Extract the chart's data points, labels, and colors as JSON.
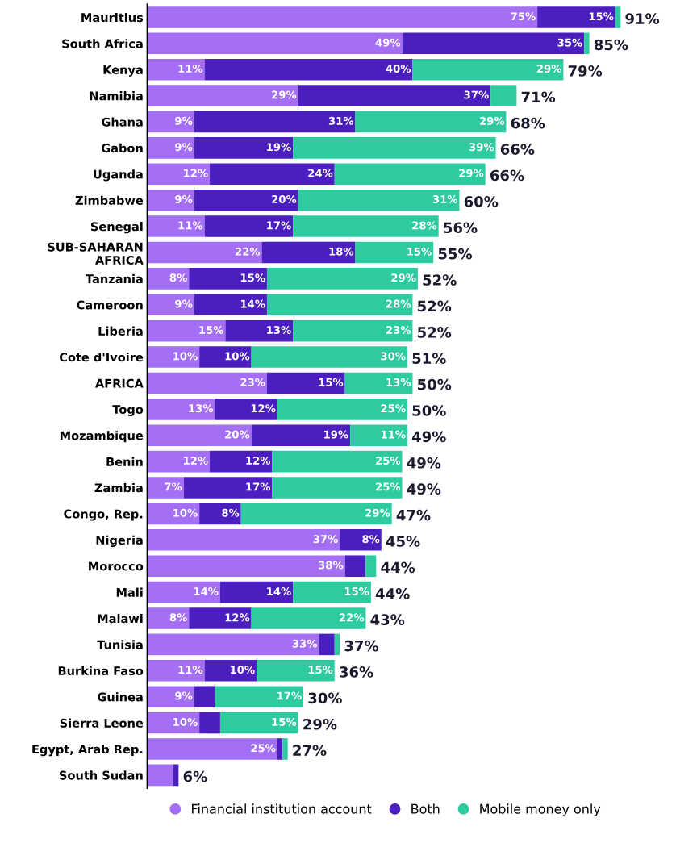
{
  "chart_data": {
    "type": "bar",
    "orientation": "horizontal",
    "stacked": true,
    "categories": [
      "Mauritius",
      "South Africa",
      "Kenya",
      "Namibia",
      "Ghana",
      "Gabon",
      "Uganda",
      "Zimbabwe",
      "Senegal",
      "SUB-SAHARAN\nAFRICA",
      "Tanzania",
      "Cameroon",
      "Liberia",
      "Cote d'Ivoire",
      "AFRICA",
      "Togo",
      "Mozambique",
      "Benin",
      "Zambia",
      "Congo, Rep.",
      "Nigeria",
      "Morocco",
      "Mali",
      "Malawi",
      "Tunisia",
      "Burkina Faso",
      "Guinea",
      "Sierra Leone",
      "Egypt, Arab Rep.",
      "South Sudan"
    ],
    "tick_labels": "y",
    "legend": "bottom",
    "grid": false,
    "series": [
      {
        "name": "Financial institution account",
        "color": "#a56ff5",
        "values": [
          75,
          49,
          11,
          29,
          9,
          9,
          12,
          9,
          11,
          22,
          8,
          9,
          15,
          10,
          23,
          13,
          20,
          12,
          7,
          10,
          37,
          38,
          14,
          8,
          33,
          11,
          9,
          10,
          25,
          5
        ],
        "value_labels": [
          "75%",
          "49%",
          "11%",
          "29%",
          "9%",
          "9%",
          "12%",
          "9%",
          "11%",
          "22%",
          "8%",
          "9%",
          "15%",
          "10%",
          "23%",
          "13%",
          "20%",
          "12%",
          "7%",
          "10%",
          "37%",
          "38%",
          "14%",
          "8%",
          "33%",
          "11%",
          "9%",
          "10%",
          "25%",
          null
        ]
      },
      {
        "name": "Both",
        "color": "#4b1fbf",
        "values": [
          15,
          35,
          40,
          37,
          31,
          19,
          24,
          20,
          17,
          18,
          15,
          14,
          13,
          10,
          15,
          12,
          19,
          12,
          17,
          8,
          8,
          4,
          14,
          12,
          3,
          10,
          4,
          4,
          1,
          1
        ],
        "value_labels": [
          "15%",
          "35%",
          "40%",
          "37%",
          "31%",
          "19%",
          "24%",
          "20%",
          "17%",
          "18%",
          "15%",
          "14%",
          "13%",
          "10%",
          "15%",
          "12%",
          "19%",
          "12%",
          "17%",
          "8%",
          "8%",
          null,
          "14%",
          "12%",
          null,
          "10%",
          null,
          null,
          null,
          null
        ]
      },
      {
        "name": "Mobile money only",
        "color": "#2ecba0",
        "values": [
          1,
          1,
          29,
          5,
          29,
          39,
          29,
          31,
          28,
          15,
          29,
          28,
          23,
          30,
          13,
          25,
          11,
          25,
          25,
          29,
          0,
          2,
          15,
          22,
          1,
          15,
          17,
          15,
          1,
          0
        ],
        "value_labels": [
          null,
          null,
          "29%",
          null,
          "29%",
          "39%",
          "29%",
          "31%",
          "28%",
          "15%",
          "29%",
          "28%",
          "23%",
          "30%",
          "13%",
          "25%",
          "11%",
          "25%",
          "25%",
          "29%",
          null,
          null,
          "15%",
          "22%",
          null,
          "15%",
          "17%",
          "15%",
          null,
          null
        ]
      }
    ],
    "totals": [
      "91%",
      "85%",
      "79%",
      "71%",
      "68%",
      "66%",
      "66%",
      "60%",
      "56%",
      "55%",
      "52%",
      "52%",
      "52%",
      "51%",
      "50%",
      "50%",
      "49%",
      "49%",
      "49%",
      "47%",
      "45%",
      "44%",
      "44%",
      "43%",
      "37%",
      "36%",
      "30%",
      "29%",
      "27%",
      "6%"
    ]
  }
}
